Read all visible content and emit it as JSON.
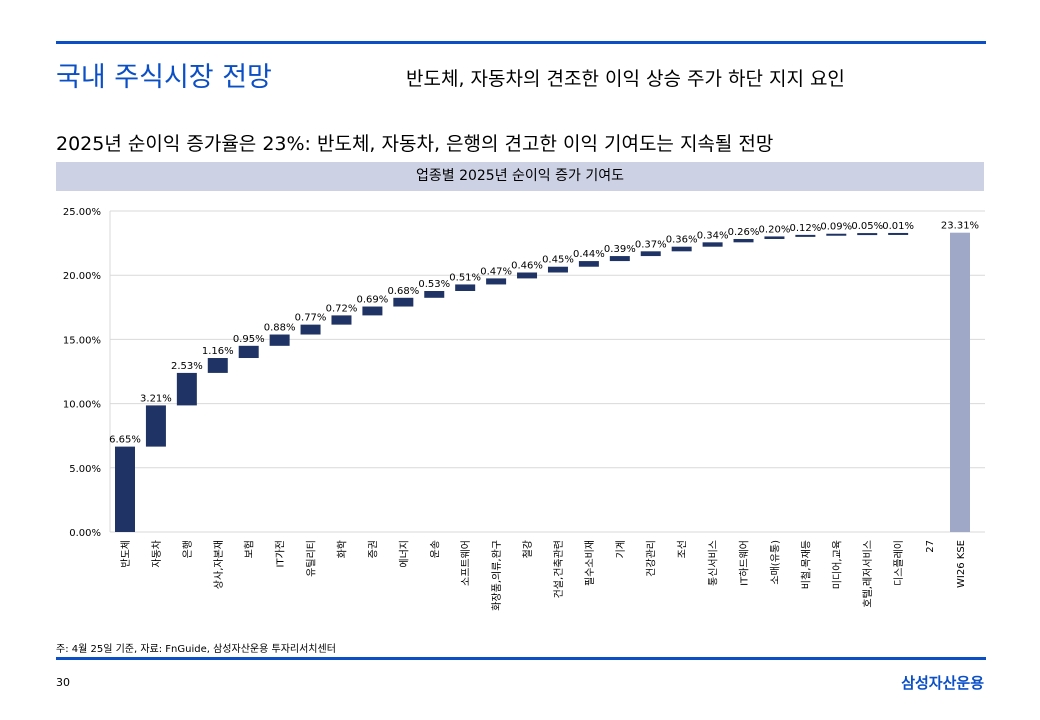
{
  "header": {
    "title": "국내 주식시장 전망",
    "subtitle": "반도체, 자동차의 견조한 이익 상승 주가 하단 지지 요인"
  },
  "headline": "2025년 순이익 증가율은 23%: 반도체, 자동차, 은행의 견고한 이익 기여도는 지속될 전망",
  "footer": {
    "note": "주: 4월 25일 기준, 자료: FnGuide, 삼성자산운용 투자리서치센터",
    "page": "30",
    "logo": "삼성자산운용"
  },
  "colors": {
    "bar": "#1f3464",
    "total": "#a0a8c8"
  },
  "chart_data": {
    "type": "bar",
    "subtype": "waterfall",
    "title": "업종별 2025년 순이익 증가 기여도",
    "categories": [
      "반도체",
      "자동차",
      "은행",
      "상사,자본재",
      "보험",
      "IT가전",
      "유틸리티",
      "화학",
      "증권",
      "에너지",
      "운송",
      "소프트웨어",
      "화장품,의류,완구",
      "철강",
      "건설,건축관련",
      "필수소비재",
      "기계",
      "건강관리",
      "조선",
      "통신서비스",
      "IT하드웨어",
      "소매(유통)",
      "비철,목재등",
      "미디어,교육",
      "호텔,레저서비스",
      "디스플레이",
      "27",
      "WI26 KSE"
    ],
    "values": [
      6.65,
      3.21,
      2.53,
      1.16,
      0.95,
      0.88,
      0.77,
      0.72,
      0.69,
      0.68,
      0.53,
      0.51,
      0.47,
      0.46,
      0.45,
      0.44,
      0.39,
      0.37,
      0.36,
      0.34,
      0.26,
      0.2,
      0.12,
      0.09,
      0.05,
      0.01,
      null,
      23.31
    ],
    "labels": [
      "6.65%",
      "3.21%",
      "2.53%",
      "1.16%",
      "0.95%",
      "0.88%",
      "0.77%",
      "0.72%",
      "0.69%",
      "0.68%",
      "0.53%",
      "0.51%",
      "0.47%",
      "0.46%",
      "0.45%",
      "0.44%",
      "0.39%",
      "0.37%",
      "0.36%",
      "0.34%",
      "0.26%",
      "0.20%",
      "0.12%",
      "0.09%",
      "0.05%",
      "0.01%",
      "",
      "23.31%"
    ],
    "total_index": 27,
    "yticks": [
      "0.00%",
      "5.00%",
      "10.00%",
      "15.00%",
      "20.00%",
      "25.00%"
    ],
    "ylim": [
      0,
      25
    ],
    "grid": true
  }
}
